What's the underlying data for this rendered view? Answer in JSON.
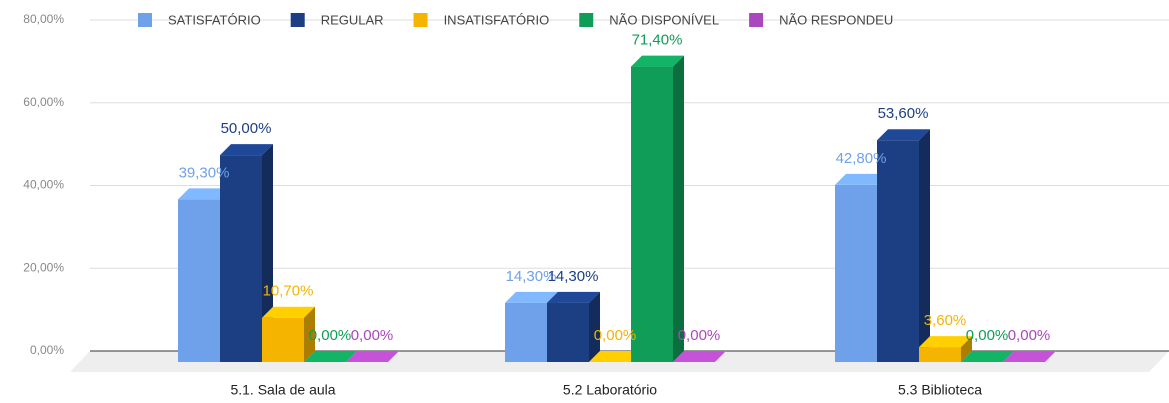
{
  "chart_data": {
    "type": "bar",
    "categories": [
      "5.1. Sala de aula",
      "5.2 Laboratório",
      "5.3 Biblioteca"
    ],
    "series": [
      {
        "name": "SATISFATÓRIO",
        "color": "#6fa1eb",
        "values": [
          39.3,
          14.3,
          42.8
        ],
        "value_labels": [
          "39,30%",
          "14,30%",
          "42,80%"
        ]
      },
      {
        "name": "REGULAR",
        "color": "#1c3f84",
        "values": [
          50,
          14.3,
          53.6
        ],
        "value_labels": [
          "50,00%",
          "14,30%",
          "53,60%"
        ]
      },
      {
        "name": "INSATISFATÓRIO",
        "color": "#f4b400",
        "values": [
          10.7,
          0,
          3.6
        ],
        "value_labels": [
          "10,70%",
          "0,00%",
          "3,60%"
        ]
      },
      {
        "name": "NÃO DISPONÍVEL",
        "color": "#0f9d58",
        "values": [
          0,
          71.4,
          0
        ],
        "value_labels": [
          "0,00%",
          "71,40%",
          "0,00%"
        ]
      },
      {
        "name": "NÃO RESPONDEU",
        "color": "#ab47bc",
        "values": [
          0,
          0,
          0
        ],
        "value_labels": [
          "0,00%",
          "0,00%",
          "0,00%"
        ]
      }
    ],
    "ylim": [
      0,
      80
    ],
    "yticks": [
      {
        "value": 0,
        "label": "0,00%"
      },
      {
        "value": 20,
        "label": "20,00%"
      },
      {
        "value": 40,
        "label": "40,00%"
      },
      {
        "value": 60,
        "label": "60,00%"
      },
      {
        "value": 80,
        "label": "80,00%"
      }
    ],
    "grid": true,
    "legend": "top"
  }
}
